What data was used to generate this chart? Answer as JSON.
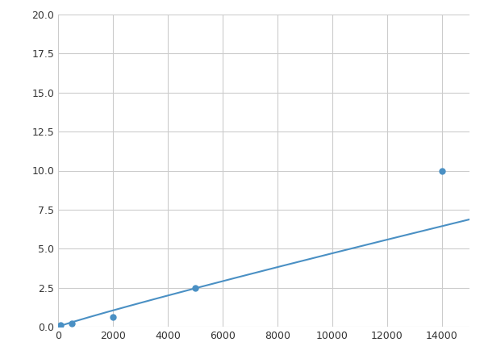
{
  "x": [
    100,
    500,
    2000,
    5000,
    14000
  ],
  "y": [
    0.1,
    0.2,
    0.6,
    2.5,
    10.0
  ],
  "line_color": "#4a90c4",
  "marker_color": "#4a90c4",
  "marker_size": 5,
  "linewidth": 1.5,
  "xlim": [
    0,
    15000
  ],
  "ylim": [
    0,
    20.0
  ],
  "xticks": [
    0,
    2000,
    4000,
    6000,
    8000,
    10000,
    12000,
    14000
  ],
  "yticks": [
    0.0,
    2.5,
    5.0,
    7.5,
    10.0,
    12.5,
    15.0,
    17.5,
    20.0
  ],
  "grid_color": "#cccccc",
  "background_color": "#ffffff",
  "figsize": [
    6.0,
    4.5
  ],
  "dpi": 100
}
